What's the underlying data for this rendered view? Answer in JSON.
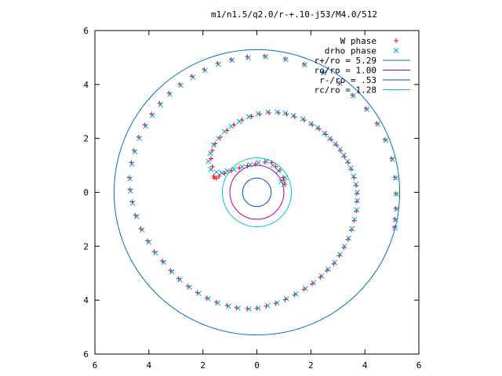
{
  "chart_data": {
    "type": "scatter",
    "title": "m1/n1.5/q2.0/r-+.10-j53/M4.0/512",
    "xlim": [
      -6,
      6
    ],
    "ylim": [
      -6,
      6
    ],
    "x_ticks": [
      -6,
      -4,
      -2,
      0,
      2,
      4,
      6
    ],
    "y_ticks": [
      -6,
      -4,
      -2,
      0,
      2,
      4,
      6
    ],
    "x_tick_labels": [
      "6",
      "4",
      "2",
      "0",
      "2",
      "4",
      "6"
    ],
    "y_tick_labels": [
      "6",
      "4",
      "2",
      "0",
      "2",
      "4",
      "6"
    ],
    "grid": false,
    "legend_position": "top-right",
    "legend": [
      {
        "label": "W phase",
        "marker": "+",
        "color": "#ff0000"
      },
      {
        "label": "drho phase",
        "marker": "x",
        "color": "#00a0e0"
      },
      {
        "label": "r+/ro = 5.29",
        "marker": "line",
        "color": "#0070c0"
      },
      {
        "label": "ro/ro = 1.00",
        "marker": "line",
        "color": "#b000b0"
      },
      {
        "label": "r-/ro = .53",
        "marker": "line",
        "color": "#0050c0"
      },
      {
        "label": "rc/ro = 1.28",
        "marker": "line",
        "color": "#00c8d8"
      }
    ],
    "circles": [
      {
        "name": "r+/ro = 5.29",
        "radius": 5.29,
        "color": "#0070c0"
      },
      {
        "name": "ro/ro = 1.00",
        "radius": 1.0,
        "color": "#b000b0"
      },
      {
        "name": "r-/ro = .53",
        "radius": 0.53,
        "color": "#0050c0"
      },
      {
        "name": "rc/ro = 1.28",
        "radius": 1.28,
        "color": "#00c8d8"
      }
    ],
    "series": [
      {
        "name": "W phase",
        "marker": "+",
        "color": "#ff0000",
        "points": [
          [
            1.0,
            0.45
          ],
          [
            1.03,
            0.3
          ],
          [
            0.97,
            0.55
          ],
          [
            0.85,
            0.82
          ],
          [
            0.7,
            0.95
          ],
          [
            0.55,
            1.1
          ],
          [
            0.3,
            1.12
          ],
          [
            -0.05,
            1.05
          ],
          [
            -0.35,
            0.98
          ],
          [
            -0.65,
            0.9
          ],
          [
            -0.95,
            0.8
          ],
          [
            -1.2,
            0.7
          ],
          [
            -1.4,
            0.6
          ],
          [
            -1.5,
            0.52
          ],
          [
            -1.58,
            0.53
          ],
          [
            -1.6,
            0.6
          ],
          [
            -1.65,
            0.95
          ],
          [
            -1.7,
            1.25
          ],
          [
            -1.65,
            1.55
          ],
          [
            -1.55,
            1.8
          ],
          [
            -1.35,
            2.05
          ],
          [
            -1.1,
            2.3
          ],
          [
            -0.85,
            2.5
          ],
          [
            -0.55,
            2.68
          ],
          [
            -0.2,
            2.82
          ],
          [
            0.1,
            2.9
          ],
          [
            0.45,
            2.95
          ],
          [
            0.8,
            2.95
          ],
          [
            1.1,
            2.9
          ],
          [
            1.4,
            2.8
          ],
          [
            1.75,
            2.68
          ],
          [
            2.05,
            2.5
          ],
          [
            2.3,
            2.35
          ],
          [
            2.55,
            2.15
          ],
          [
            2.75,
            1.95
          ],
          [
            2.95,
            1.75
          ],
          [
            3.1,
            1.55
          ],
          [
            3.25,
            1.32
          ],
          [
            3.38,
            1.1
          ],
          [
            3.5,
            0.85
          ],
          [
            3.6,
            0.55
          ],
          [
            3.68,
            0.25
          ],
          [
            3.7,
            -0.05
          ],
          [
            3.7,
            -0.35
          ],
          [
            3.68,
            -0.7
          ],
          [
            3.6,
            -1.05
          ],
          [
            3.5,
            -1.4
          ],
          [
            3.38,
            -1.75
          ],
          [
            3.22,
            -2.05
          ],
          [
            3.05,
            -2.35
          ],
          [
            2.85,
            -2.65
          ],
          [
            2.6,
            -2.9
          ],
          [
            2.35,
            -3.15
          ],
          [
            2.05,
            -3.4
          ],
          [
            1.75,
            -3.6
          ],
          [
            1.4,
            -3.8
          ],
          [
            1.05,
            -3.98
          ],
          [
            0.7,
            -4.12
          ],
          [
            0.35,
            -4.22
          ],
          [
            0.0,
            -4.3
          ],
          [
            -0.35,
            -4.32
          ],
          [
            -0.75,
            -4.28
          ],
          [
            -1.1,
            -4.2
          ],
          [
            -1.5,
            -4.08
          ],
          [
            -1.85,
            -3.92
          ],
          [
            -2.2,
            -3.72
          ],
          [
            -2.55,
            -3.48
          ],
          [
            -2.9,
            -3.2
          ],
          [
            -3.2,
            -2.9
          ],
          [
            -3.5,
            -2.55
          ],
          [
            -3.8,
            -2.2
          ],
          [
            -4.05,
            -1.8
          ],
          [
            -4.3,
            -1.35
          ],
          [
            -4.5,
            -0.85
          ],
          [
            -4.62,
            -0.35
          ],
          [
            -4.7,
            0.1
          ],
          [
            -4.72,
            0.55
          ],
          [
            -4.65,
            1.1
          ],
          [
            -4.55,
            1.55
          ],
          [
            -4.38,
            2.05
          ],
          [
            -4.15,
            2.5
          ],
          [
            -3.9,
            2.9
          ],
          [
            -3.6,
            3.3
          ],
          [
            -3.25,
            3.68
          ],
          [
            -2.85,
            4.0
          ],
          [
            -2.4,
            4.3
          ],
          [
            -1.95,
            4.55
          ],
          [
            -1.45,
            4.78
          ],
          [
            -0.95,
            4.92
          ],
          [
            -0.35,
            5.02
          ],
          [
            0.3,
            5.05
          ],
          [
            1.05,
            4.95
          ],
          [
            1.75,
            4.75
          ],
          [
            2.45,
            4.45
          ],
          [
            3.05,
            4.05
          ],
          [
            3.55,
            3.6
          ],
          [
            4.05,
            3.1
          ],
          [
            4.45,
            2.55
          ],
          [
            4.75,
            1.95
          ],
          [
            5.0,
            1.25
          ],
          [
            5.12,
            0.55
          ],
          [
            5.15,
            -0.05
          ],
          [
            5.15,
            -0.6
          ],
          [
            5.12,
            -1.0
          ],
          [
            5.1,
            -1.3
          ]
        ]
      },
      {
        "name": "drho phase",
        "marker": "x",
        "color": "#00a0e0",
        "points": [
          [
            0.9,
            0.4
          ],
          [
            1.0,
            0.3
          ],
          [
            1.05,
            0.55
          ],
          [
            0.8,
            0.8
          ],
          [
            0.6,
            1.0
          ],
          [
            0.35,
            1.15
          ],
          [
            0.05,
            1.1
          ],
          [
            -0.25,
            1.02
          ],
          [
            -0.55,
            0.95
          ],
          [
            -0.85,
            0.85
          ],
          [
            -1.1,
            0.8
          ],
          [
            -1.3,
            0.72
          ],
          [
            -1.5,
            0.75
          ],
          [
            -1.7,
            0.85
          ],
          [
            -1.8,
            1.15
          ],
          [
            -1.72,
            1.45
          ],
          [
            -1.6,
            1.75
          ],
          [
            -1.42,
            2.0
          ],
          [
            -1.2,
            2.25
          ],
          [
            -0.95,
            2.45
          ],
          [
            -0.65,
            2.63
          ],
          [
            -0.3,
            2.8
          ],
          [
            0.05,
            2.92
          ],
          [
            0.4,
            2.98
          ],
          [
            0.75,
            2.98
          ],
          [
            1.05,
            2.93
          ],
          [
            1.35,
            2.85
          ],
          [
            1.7,
            2.72
          ],
          [
            2.0,
            2.55
          ],
          [
            2.25,
            2.4
          ],
          [
            2.5,
            2.2
          ],
          [
            2.7,
            2.0
          ],
          [
            2.9,
            1.8
          ],
          [
            3.08,
            1.6
          ],
          [
            3.22,
            1.38
          ],
          [
            3.36,
            1.15
          ],
          [
            3.48,
            0.9
          ],
          [
            3.58,
            0.6
          ],
          [
            3.67,
            0.3
          ],
          [
            3.72,
            0.0
          ],
          [
            3.72,
            -0.3
          ],
          [
            3.7,
            -0.65
          ],
          [
            3.62,
            -1.0
          ],
          [
            3.52,
            -1.35
          ],
          [
            3.4,
            -1.7
          ],
          [
            3.25,
            -2.0
          ],
          [
            3.08,
            -2.3
          ],
          [
            2.88,
            -2.6
          ],
          [
            2.64,
            -2.85
          ],
          [
            2.4,
            -3.1
          ],
          [
            2.1,
            -3.35
          ],
          [
            1.8,
            -3.57
          ],
          [
            1.45,
            -3.77
          ],
          [
            1.1,
            -3.95
          ],
          [
            0.75,
            -4.1
          ],
          [
            0.4,
            -4.2
          ],
          [
            0.05,
            -4.3
          ],
          [
            -0.3,
            -4.33
          ],
          [
            -0.7,
            -4.3
          ],
          [
            -1.05,
            -4.22
          ],
          [
            -1.45,
            -4.1
          ],
          [
            -1.8,
            -3.95
          ],
          [
            -2.15,
            -3.75
          ],
          [
            -2.5,
            -3.52
          ],
          [
            -2.85,
            -3.25
          ],
          [
            -3.15,
            -2.95
          ],
          [
            -3.45,
            -2.6
          ],
          [
            -3.75,
            -2.25
          ],
          [
            -4.0,
            -1.85
          ],
          [
            -4.25,
            -1.4
          ],
          [
            -4.45,
            -0.9
          ],
          [
            -4.6,
            -0.4
          ],
          [
            -4.68,
            0.05
          ],
          [
            -4.7,
            0.5
          ],
          [
            -4.63,
            1.05
          ],
          [
            -4.52,
            1.5
          ],
          [
            -4.35,
            2.0
          ],
          [
            -4.12,
            2.45
          ],
          [
            -3.87,
            2.85
          ],
          [
            -3.57,
            3.25
          ],
          [
            -3.22,
            3.63
          ],
          [
            -2.82,
            3.97
          ],
          [
            -2.37,
            4.27
          ],
          [
            -1.92,
            4.52
          ],
          [
            -1.42,
            4.75
          ],
          [
            -0.92,
            4.9
          ],
          [
            -0.32,
            5.0
          ],
          [
            0.32,
            5.03
          ],
          [
            1.07,
            4.93
          ],
          [
            1.77,
            4.73
          ],
          [
            2.47,
            4.43
          ],
          [
            3.07,
            4.03
          ],
          [
            3.57,
            3.58
          ],
          [
            4.07,
            3.08
          ],
          [
            4.47,
            2.53
          ],
          [
            4.77,
            1.93
          ],
          [
            5.02,
            1.23
          ],
          [
            5.14,
            0.53
          ],
          [
            5.17,
            -0.07
          ],
          [
            5.17,
            -0.62
          ],
          [
            5.14,
            -1.02
          ],
          [
            5.12,
            -1.32
          ]
        ]
      }
    ]
  }
}
